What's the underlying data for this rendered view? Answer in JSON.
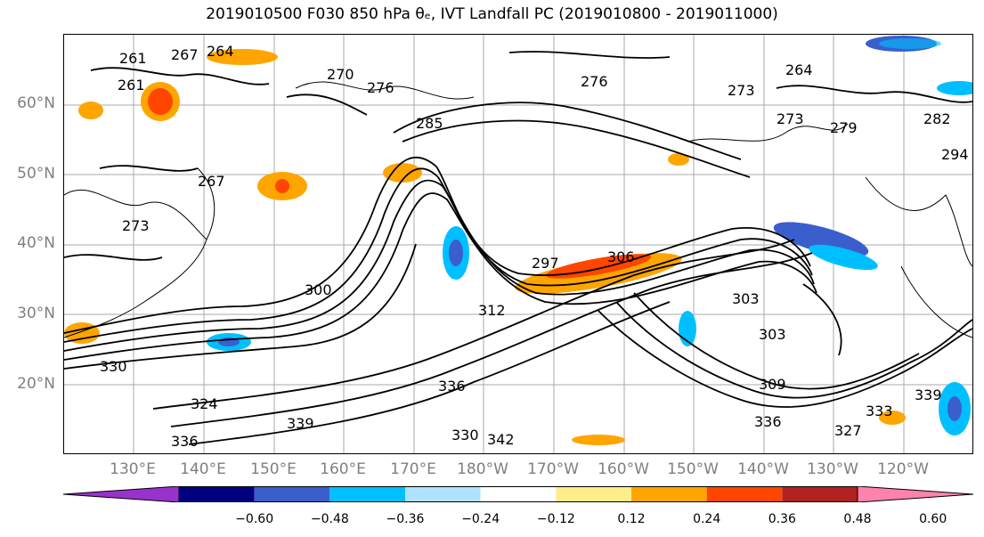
{
  "title": "2019010500 F030 850 hPa θₑ, IVT Landfall PC (2019010800 - 2019011000)",
  "lat_labels": [
    "60°N",
    "50°N",
    "40°N",
    "30°N",
    "20°N"
  ],
  "lon_labels": [
    "130°E",
    "140°E",
    "150°E",
    "160°E",
    "170°E",
    "180°W",
    "170°W",
    "160°W",
    "150°W",
    "140°W",
    "130°W",
    "120°W"
  ],
  "contour_labels": [
    "261",
    "267",
    "264",
    "270",
    "276",
    "273",
    "285",
    "273",
    "264",
    "276",
    "261",
    "267",
    "273",
    "279",
    "282",
    "294",
    "300",
    "303",
    "303",
    "297",
    "312",
    "306",
    "330",
    "324",
    "336",
    "309",
    "339",
    "333",
    "330",
    "339",
    "342",
    "336",
    "327",
    "336"
  ],
  "colorbar": {
    "ticks": [
      "−0.60",
      "−0.48",
      "−0.36",
      "−0.24",
      "−0.12",
      "0.12",
      "0.24",
      "0.36",
      "0.48",
      "0.60"
    ],
    "colors": [
      "#9932cc",
      "#000080",
      "#3a5fcd",
      "#00bfff",
      "#b0e2ff",
      "#ffffff",
      "#ffec8b",
      "#ffa500",
      "#ff4500",
      "#b22222",
      "#ff82ab"
    ]
  }
}
